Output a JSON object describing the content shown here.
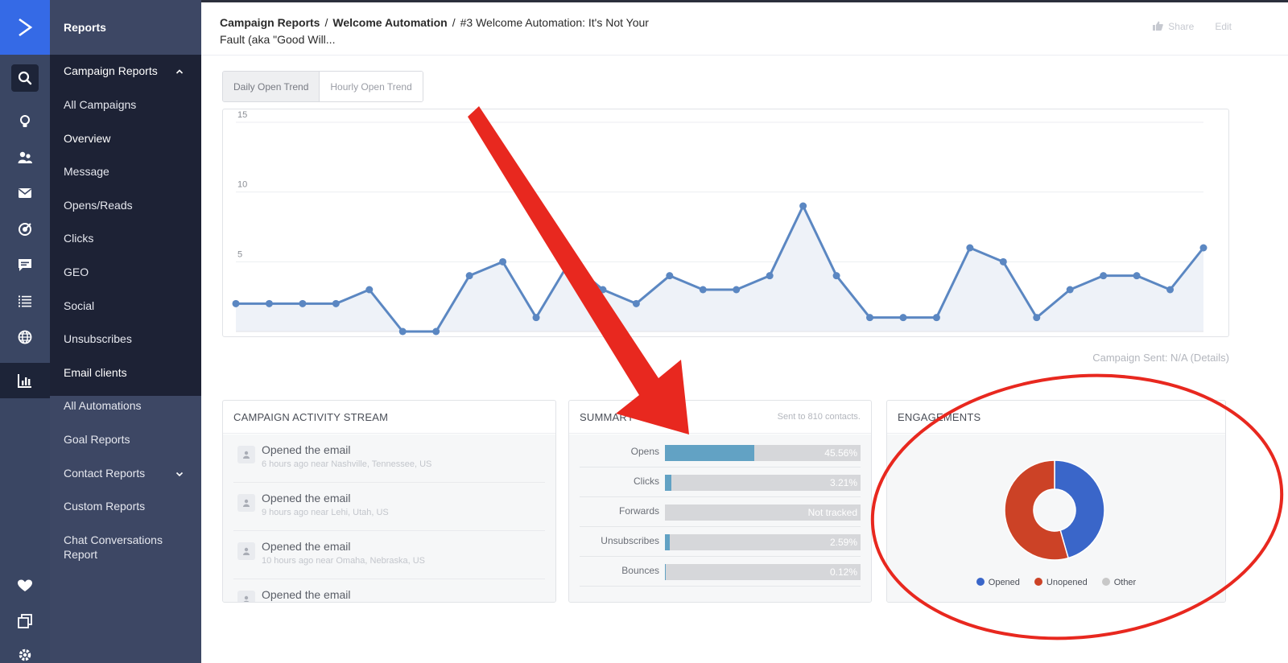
{
  "app": {
    "section_title": "Reports"
  },
  "rail": {
    "icons": [
      "logo-icon",
      "search-icon",
      "lightbulb-icon",
      "contacts-icon",
      "mail-icon",
      "target-icon",
      "chat-icon",
      "list-icon",
      "globe-icon",
      "reports-icon",
      "heart-icon",
      "pages-icon",
      "gear-icon"
    ],
    "accent": "#356ae6"
  },
  "sidebar": {
    "items": [
      {
        "label": "Campaign Reports",
        "expanded": true
      },
      {
        "label": "All Campaigns"
      },
      {
        "label": "Overview"
      },
      {
        "label": "Message"
      },
      {
        "label": "Opens/Reads"
      },
      {
        "label": "Clicks"
      },
      {
        "label": "GEO"
      },
      {
        "label": "Social"
      },
      {
        "label": "Unsubscribes"
      },
      {
        "label": "Email clients"
      },
      {
        "label": "All Automations"
      },
      {
        "label": "Goal Reports"
      },
      {
        "label": "Contact Reports",
        "expanded": false
      },
      {
        "label": "Custom Reports"
      },
      {
        "label": "Chat Conversations Report"
      }
    ]
  },
  "header": {
    "breadcrumb": [
      "Campaign Reports",
      "Welcome Automation"
    ],
    "separator": "/",
    "title": "#3 Welcome Automation: It's Not Your Fault (aka \"Good Will...",
    "share_label": "Share",
    "edit_label": "Edit"
  },
  "tabs": [
    {
      "label": "Daily Open Trend",
      "active": true
    },
    {
      "label": "Hourly Open Trend",
      "active": false
    }
  ],
  "chart_data": [
    {
      "type": "area",
      "title": "",
      "xlabel": "",
      "ylabel": "",
      "ylim": [
        0,
        15
      ],
      "yticks": [
        5,
        10,
        15
      ],
      "grid": true,
      "color": "#5b87c2",
      "fill": "#eef2f8",
      "x": [
        1,
        2,
        3,
        4,
        5,
        6,
        7,
        8,
        9,
        10,
        11,
        12,
        13,
        14,
        15,
        16,
        17,
        18,
        19,
        20,
        21,
        22,
        23,
        24,
        25,
        26,
        27,
        28,
        29,
        30
      ],
      "series": [
        {
          "values": [
            2,
            2,
            2,
            2,
            3,
            0,
            0,
            4,
            5,
            1,
            5,
            3,
            2,
            4,
            3,
            3,
            4,
            9,
            4,
            1,
            1,
            1,
            6,
            5,
            1,
            3,
            4,
            4,
            3,
            6
          ]
        }
      ]
    },
    {
      "type": "pie",
      "donut": true,
      "title": "",
      "legend": "bottom",
      "categories": [
        "Opened",
        "Unopened",
        "Other"
      ],
      "values": [
        45.56,
        54.44,
        0
      ],
      "colors": [
        "#3a66c9",
        "#cc4226",
        "#c8c8c8"
      ]
    }
  ],
  "campaign_sent": "Campaign Sent: N/A (Details)",
  "activity": {
    "title": "CAMPAIGN ACTIVITY STREAM",
    "items": [
      {
        "action": "Opened the email",
        "meta": "6 hours ago  near Nashville, Tennessee, US"
      },
      {
        "action": "Opened the email",
        "meta": "9 hours ago  near Lehi, Utah, US"
      },
      {
        "action": "Opened the email",
        "meta": "10 hours ago  near Omaha, Nebraska, US"
      },
      {
        "action": "Opened the email",
        "meta": ""
      }
    ]
  },
  "summary": {
    "title": "SUMMARY",
    "note": "Sent to 810 contacts.",
    "rows": [
      {
        "label": "Opens",
        "value": "45.56%",
        "fraction": 0.4556,
        "color": "#62a2c4"
      },
      {
        "label": "Clicks",
        "value": "3.21%",
        "fraction": 0.0321,
        "color": "#62a2c4"
      },
      {
        "label": "Forwards",
        "value": "Not tracked",
        "fraction": 0,
        "color": "#62a2c4"
      },
      {
        "label": "Unsubscribes",
        "value": "2.59%",
        "fraction": 0.0259,
        "color": "#62a2c4"
      },
      {
        "label": "Bounces",
        "value": "0.12%",
        "fraction": 0.0012,
        "color": "#62a2c4"
      }
    ]
  },
  "engagements": {
    "title": "ENGAGEMENTS"
  },
  "annotations": {
    "color": "#e8281f",
    "shapes": [
      "arrow",
      "ellipse"
    ]
  }
}
